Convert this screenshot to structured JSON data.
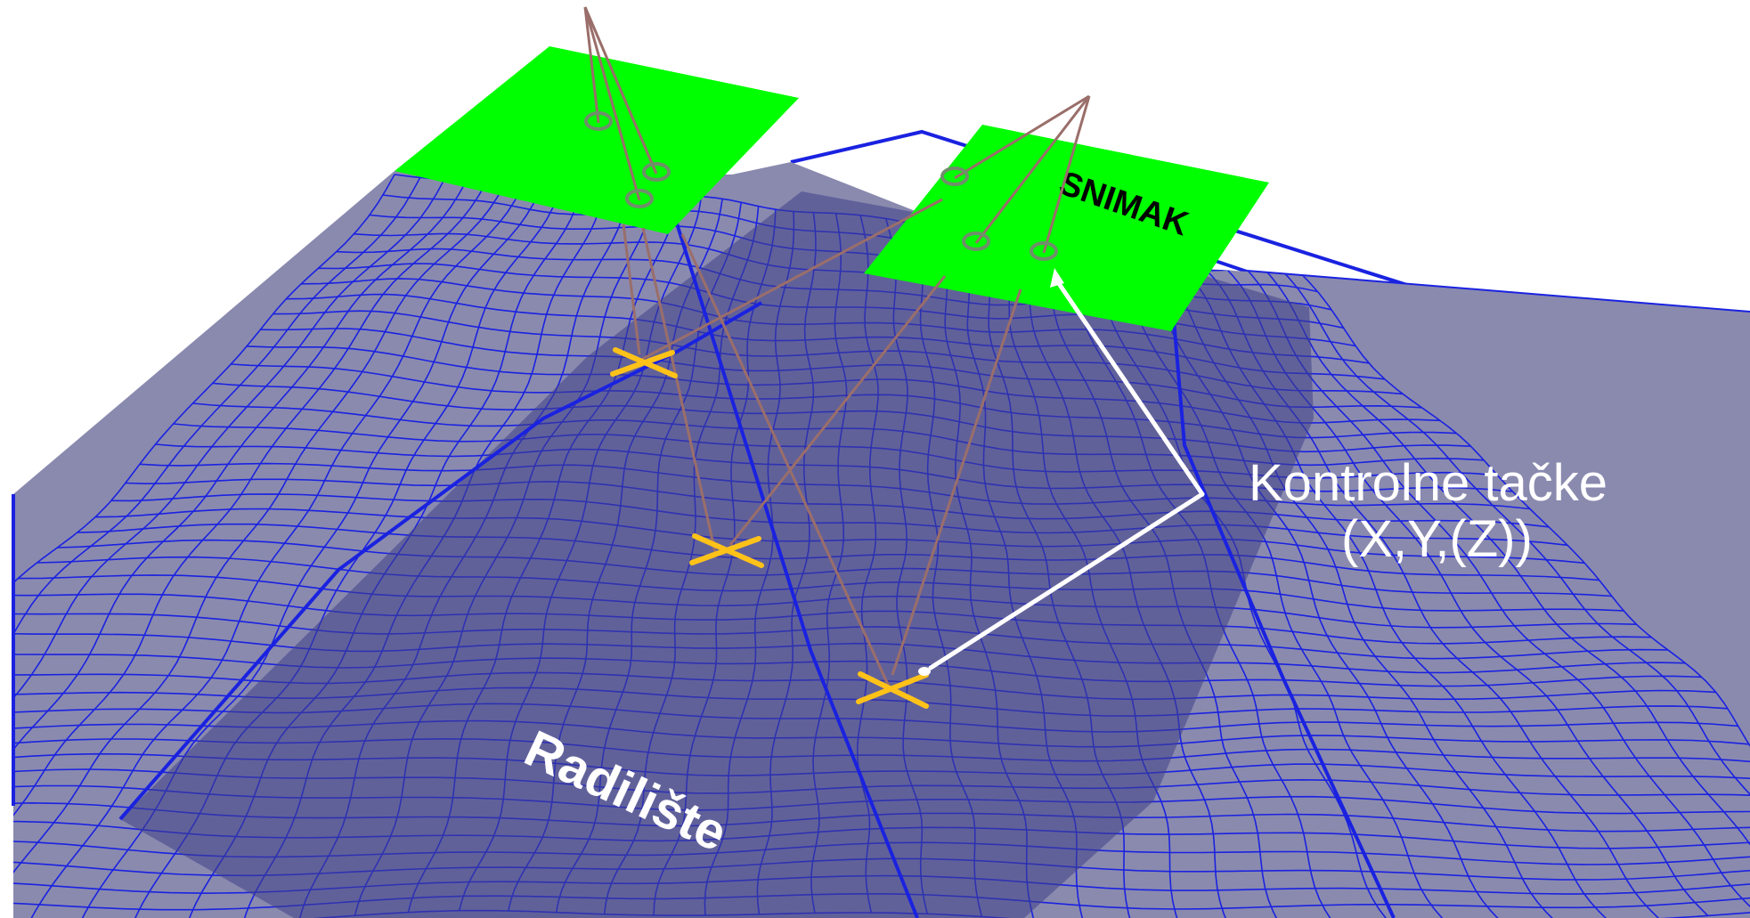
{
  "labels": {
    "snimak": "SNIMAK",
    "radiliste": "Radilište",
    "kontrolne_line1": "Kontrolne tačke",
    "kontrolne_line2": "(X,Y,(Z))"
  },
  "colors": {
    "background": "#ffffff",
    "terrain_fill": "#8a8aaf",
    "terrain_dark": "#4c4c90",
    "mesh_line": "#1a22e0",
    "image_frame": "#00ff00",
    "ray_line": "#9a6e6a",
    "control_point_marker": "#ffc219",
    "label_light": "#ffffff",
    "label_dark": "#000000"
  },
  "icons": {
    "control_point": "cross-marker",
    "image_point": "ellipse-marker"
  }
}
